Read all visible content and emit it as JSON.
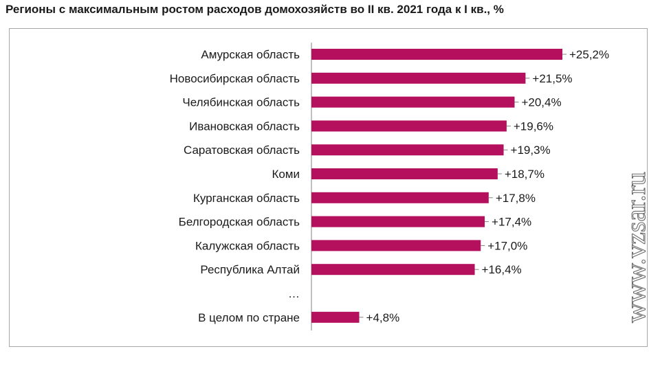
{
  "title": "Регионы с максимальным ростом расходов домохозяйств во II кв. 2021 года к I кв., %",
  "watermark": "www.vzsar.ru",
  "colors": {
    "bar": "#b5105e",
    "axis": "#808080",
    "frame": "#a6a6a6",
    "text": "#1a1a1a"
  },
  "chart_data": {
    "type": "bar",
    "orientation": "horizontal",
    "categories": [
      "Амурская область",
      "Новосибирская область",
      "Челябинская область",
      "Ивановская область",
      "Саратовская область",
      "Коми",
      "Курганская область",
      "Белгородская область",
      "Калужская область",
      "Республика Алтай",
      "…",
      "В целом по стране"
    ],
    "values": [
      25.2,
      21.5,
      20.4,
      19.6,
      19.3,
      18.7,
      17.8,
      17.4,
      17.0,
      16.4,
      null,
      4.8
    ],
    "data_labels": [
      "+25,2%",
      "+21,5%",
      "+20,4%",
      "+19,6%",
      "+19,3%",
      "+18,7%",
      "+17,8%",
      "+17,4%",
      "+17,0%",
      "+16,4%",
      "",
      "+4,8%"
    ],
    "xlim": [
      0,
      25.2
    ],
    "grid": false,
    "legend": "none"
  }
}
